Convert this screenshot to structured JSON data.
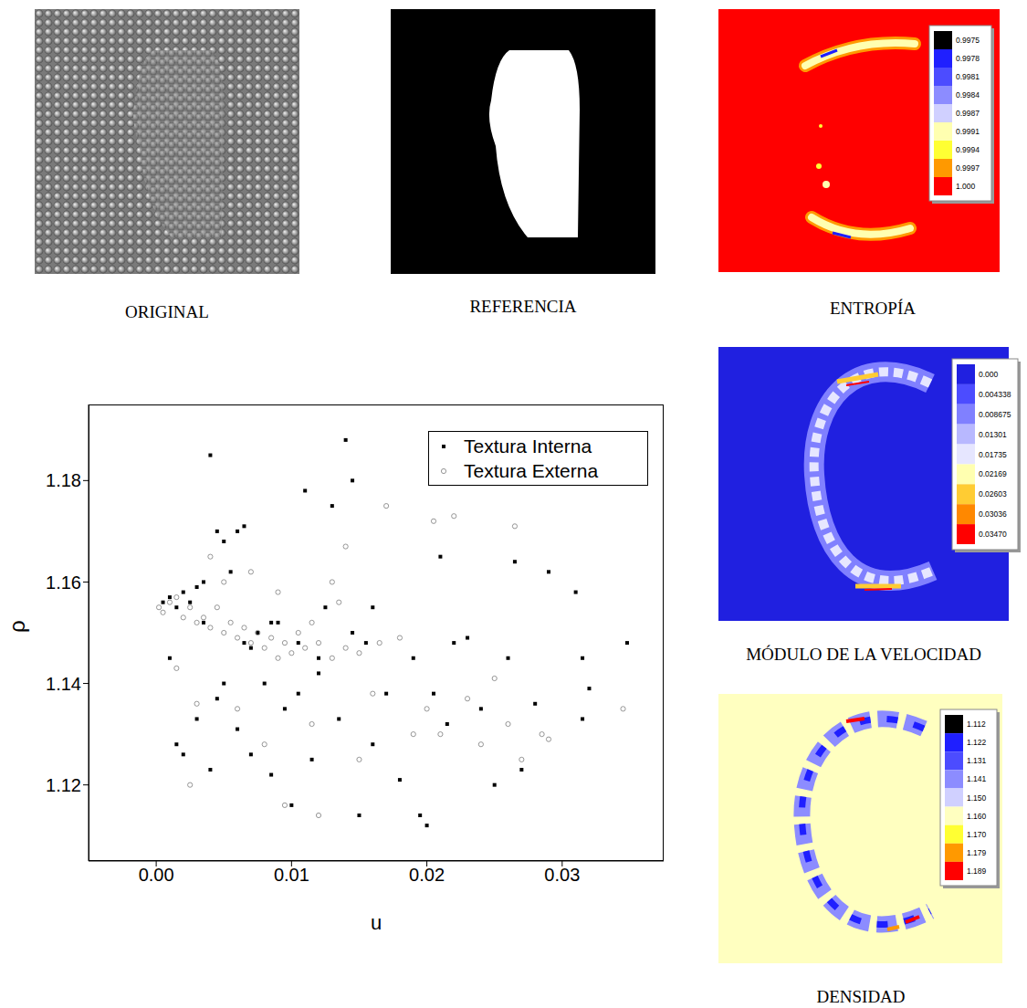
{
  "panels": [
    {
      "label": "ORIGINAL"
    },
    {
      "label": "REFERENCIA"
    },
    {
      "label": "ENTROPÍA",
      "colorbar": {
        "ticks": [
          0.9975,
          0.9978,
          0.9981,
          0.9984,
          0.9987,
          0.9991,
          0.9994,
          0.9997,
          {
            "value": 1,
            "label": "1.000"
          }
        ],
        "colors": [
          "#000000",
          "#1f1fff",
          "#4c4cff",
          "#8c8cff",
          "#d0d0ff",
          "#ffffb0",
          "#ffff33",
          "#ff9900",
          "#ff0000"
        ]
      }
    },
    {
      "label": "MÓDULO DE LA VELOCIDAD",
      "colorbar": {
        "ticks": [
          {
            "value": 0,
            "label": "0.000"
          },
          0.004338,
          0.008675,
          0.01301,
          0.01735,
          0.02169,
          0.02603,
          0.03036,
          {
            "value": 0.0347,
            "label": "0.03470"
          }
        ],
        "colors": [
          "#2020e0",
          "#4c4cff",
          "#8080ff",
          "#b8b8ff",
          "#e6e6ff",
          "#ffffb0",
          "#ffcc33",
          "#ff8800",
          "#ff0000"
        ]
      }
    },
    {
      "label": "DENSIDAD",
      "colorbar": {
        "ticks": [
          1.112,
          1.122,
          1.131,
          1.141,
          {
            "value": 1.15,
            "label": "1.150"
          },
          {
            "value": 1.16,
            "label": "1.160"
          },
          {
            "value": 1.17,
            "label": "1.170"
          },
          1.179,
          1.189
        ],
        "colors": [
          "#000000",
          "#1f1fff",
          "#4c4cff",
          "#8c8cff",
          "#d0d0ff",
          "#ffffc0",
          "#ffff33",
          "#ff9900",
          "#ff0000"
        ]
      }
    }
  ],
  "chart_data": {
    "type": "scatter",
    "x_label": "u",
    "y_label": "ρ",
    "xlim": [
      -0.005,
      0.0375
    ],
    "ylim": [
      1.105,
      1.195
    ],
    "xticks": [
      {
        "value": 0,
        "label": "0.00"
      },
      0.01,
      0.02,
      0.03
    ],
    "yticks": [
      1.12,
      1.14,
      1.16,
      1.18
    ],
    "legend": "upper right",
    "series": [
      {
        "name": "Textura Interna",
        "color": "#000000",
        "marker": "square",
        "x": [
          0.0005,
          0.001,
          0.0015,
          0.002,
          0.0025,
          0.003,
          0.0035,
          0.004,
          0.0045,
          0.005,
          0.0055,
          0.006,
          0.0065,
          0.001,
          0.0015,
          0.002,
          0.003,
          0.004,
          0.0045,
          0.005,
          0.006,
          0.007,
          0.0075,
          0.008,
          0.0085,
          0.009,
          0.0095,
          0.01,
          0.0105,
          0.011,
          0.0115,
          0.012,
          0.0125,
          0.013,
          0.0135,
          0.014,
          0.0145,
          0.015,
          0.0155,
          0.016,
          0.017,
          0.018,
          0.019,
          0.0195,
          0.02,
          0.0205,
          0.021,
          0.0215,
          0.022,
          0.023,
          0.024,
          0.025,
          0.026,
          0.0265,
          0.027,
          0.028,
          0.029,
          0.031,
          0.0315,
          0.032,
          0.0315,
          0.0348,
          0.0035,
          0.007,
          0.0085,
          0.012,
          0.0105,
          0.016,
          0.0145,
          0.0065
        ],
        "values": [
          1.156,
          1.157,
          1.155,
          1.158,
          1.156,
          1.159,
          1.16,
          1.185,
          1.17,
          1.168,
          1.162,
          1.17,
          1.171,
          1.145,
          1.128,
          1.126,
          1.133,
          1.123,
          1.137,
          1.14,
          1.131,
          1.126,
          1.15,
          1.14,
          1.122,
          1.152,
          1.135,
          1.116,
          1.148,
          1.178,
          1.125,
          1.142,
          1.155,
          1.175,
          1.133,
          1.188,
          1.18,
          1.114,
          1.148,
          1.155,
          1.138,
          1.121,
          1.145,
          1.114,
          1.112,
          1.138,
          1.165,
          1.132,
          1.148,
          1.149,
          1.135,
          1.12,
          1.145,
          1.164,
          1.123,
          1.136,
          1.162,
          1.158,
          1.145,
          1.139,
          1.133,
          1.148,
          1.152,
          1.147,
          1.152,
          1.145,
          1.138,
          1.128,
          1.15,
          1.148
        ]
      },
      {
        "name": "Textura Externa",
        "color": "#8a8a8a",
        "marker": "circle_open",
        "x": [
          0.0002,
          0.0005,
          0.001,
          0.0015,
          0.002,
          0.0025,
          0.003,
          0.0035,
          0.004,
          0.0045,
          0.005,
          0.0055,
          0.006,
          0.0065,
          0.007,
          0.0075,
          0.008,
          0.0085,
          0.009,
          0.0095,
          0.01,
          0.0105,
          0.011,
          0.012,
          0.013,
          0.014,
          0.015,
          0.0015,
          0.003,
          0.0025,
          0.004,
          0.005,
          0.006,
          0.007,
          0.008,
          0.009,
          0.0095,
          0.0115,
          0.012,
          0.013,
          0.014,
          0.015,
          0.016,
          0.017,
          0.018,
          0.019,
          0.02,
          0.0205,
          0.021,
          0.022,
          0.023,
          0.024,
          0.025,
          0.026,
          0.0265,
          0.027,
          0.0285,
          0.029,
          0.0345,
          0.0135,
          0.0165,
          0.0115
        ],
        "values": [
          1.155,
          1.154,
          1.156,
          1.157,
          1.153,
          1.155,
          1.152,
          1.153,
          1.151,
          1.155,
          1.15,
          1.152,
          1.149,
          1.151,
          1.148,
          1.15,
          1.147,
          1.149,
          1.145,
          1.148,
          1.146,
          1.15,
          1.147,
          1.148,
          1.145,
          1.147,
          1.146,
          1.143,
          1.136,
          1.12,
          1.165,
          1.16,
          1.135,
          1.162,
          1.128,
          1.158,
          1.116,
          1.132,
          1.114,
          1.16,
          1.167,
          1.125,
          1.138,
          1.175,
          1.149,
          1.13,
          1.135,
          1.172,
          1.13,
          1.173,
          1.137,
          1.128,
          1.141,
          1.132,
          1.171,
          1.125,
          1.13,
          1.129,
          1.135,
          1.156,
          1.148,
          1.152
        ]
      }
    ]
  }
}
